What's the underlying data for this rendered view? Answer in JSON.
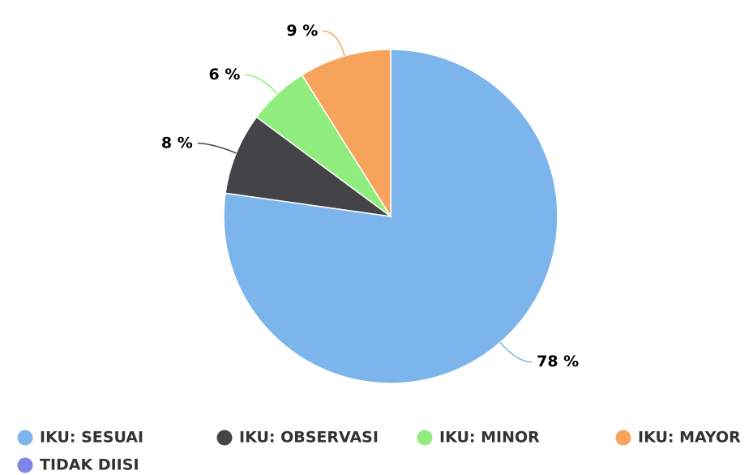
{
  "chart_data": {
    "type": "pie",
    "categories": [
      "IKU: SESUAI",
      "IKU: OBSERVASI",
      "IKU: MINOR",
      "IKU: MAYOR",
      "TIDAK DIISI"
    ],
    "values": [
      78,
      8,
      6,
      9,
      0
    ],
    "value_labels": [
      "78 %",
      "8 %",
      "6 %",
      "9 %",
      null
    ],
    "colors": [
      "#7cb5ec",
      "#434348",
      "#90ed7d",
      "#f7a35c",
      "#8085e9"
    ],
    "legend": "bottom"
  }
}
